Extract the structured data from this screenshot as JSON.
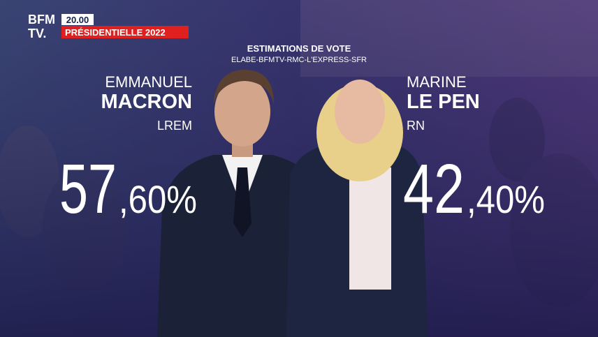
{
  "header": {
    "logo_top": "BFM",
    "logo_bottom": "TV.",
    "time": "20.00",
    "banner": "PRÉSIDENTIELLE 2022"
  },
  "title": "ESTIMATIONS DE VOTE",
  "subtitle": "ELABE-BFMTV-RMC-L'EXPRESS-SFR",
  "candidates": [
    {
      "first_name": "EMMANUEL",
      "last_name": "MACRON",
      "party": "LREM",
      "score": {
        "whole": "57",
        "fraction": ",60%"
      }
    },
    {
      "first_name": "MARINE",
      "last_name": "LE PEN",
      "party": "RN",
      "score": {
        "whole": "42",
        "fraction": ",40%"
      }
    }
  ]
}
